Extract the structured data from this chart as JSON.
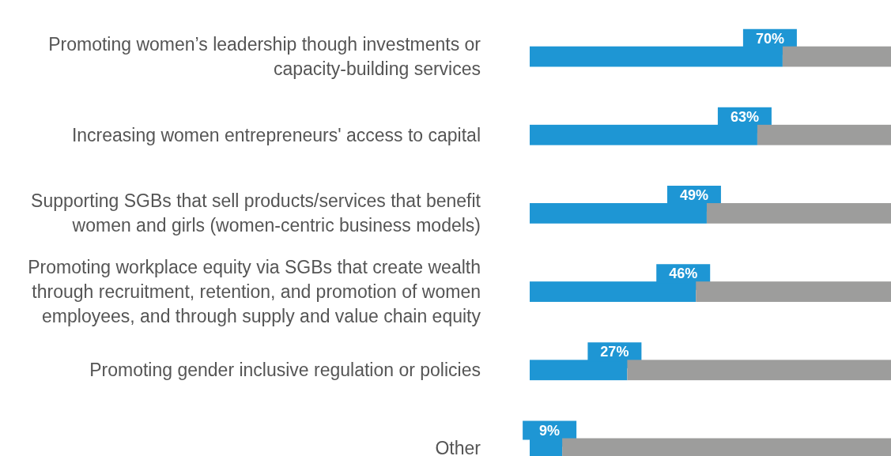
{
  "chart_data": {
    "type": "bar",
    "orientation": "horizontal",
    "stacked": true,
    "xlim": [
      0,
      100
    ],
    "tick_labels": false,
    "categories": [
      "Promoting women’s leadership though investments or capacity-building services",
      "Increasing women entrepreneurs' access to capital",
      "Supporting SGBs that sell products/services that benefit women and girls (women-centric business models)",
      "Promoting workplace equity via SGBs that create wealth through recruitment, retention, and promotion of women employees, and through supply and value chain equity",
      "Promoting gender inclusive regulation or policies",
      "Other"
    ],
    "series": [
      {
        "color": "#1e96d4",
        "values": [
          70,
          63,
          49,
          46,
          27,
          9
        ],
        "value_labels": [
          "70%",
          "63%",
          "49%",
          "46%",
          "27%",
          "9%"
        ]
      },
      {
        "color": "#9d9d9c",
        "values": [
          30,
          37,
          51,
          54,
          73,
          91
        ]
      }
    ]
  }
}
